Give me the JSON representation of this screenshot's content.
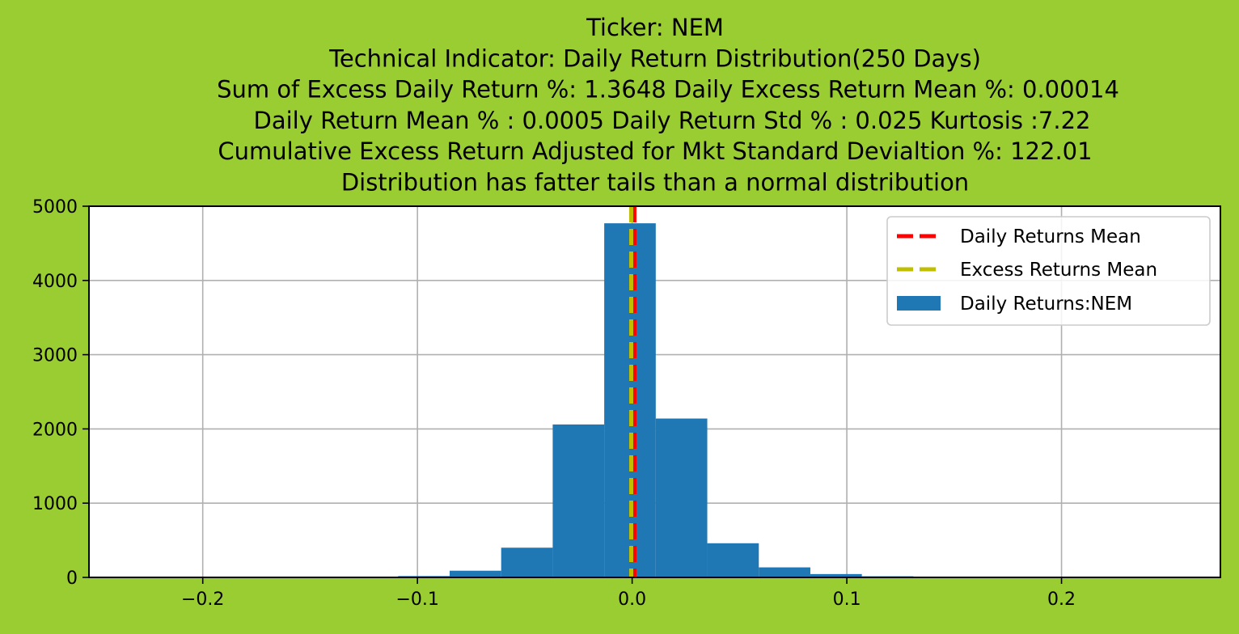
{
  "page": {
    "background": "#9acd32"
  },
  "chart_data": {
    "type": "bar",
    "title_lines": [
      "Ticker: NEM",
      "Technical Indicator: Daily Return Distribution(250 Days)",
      "Sum of Excess Daily Return %: 1.3648   Daily Excess Return Mean %: 0.00014",
      "Daily Return Mean % : 0.0005    Daily Return Std % : 0.025  Kurtosis :7.22",
      "Cumulative Excess Return Adjusted for Mkt Standard Devialtion %: 122.01",
      "Distribution has fatter tails than a normal distribution"
    ],
    "xlabel": "",
    "ylabel": "",
    "xlim": [
      -0.253,
      0.274
    ],
    "ylim": [
      0,
      5000
    ],
    "x_ticks": [
      -0.2,
      -0.1,
      0.0,
      0.1,
      0.2
    ],
    "x_tick_labels": [
      "−0.2",
      "−0.1",
      "0.0",
      "0.1",
      "0.2"
    ],
    "y_ticks": [
      0,
      1000,
      2000,
      3000,
      4000,
      5000
    ],
    "y_tick_labels": [
      "0",
      "1000",
      "2000",
      "3000",
      "4000",
      "5000"
    ],
    "grid": true,
    "legend_position": "top-right",
    "bin_edges": [
      -0.229,
      -0.205,
      -0.181,
      -0.157,
      -0.133,
      -0.109,
      -0.085,
      -0.061,
      -0.037,
      -0.013,
      0.011,
      0.035,
      0.059,
      0.083,
      0.107,
      0.131,
      0.155,
      0.179,
      0.203,
      0.227,
      0.251
    ],
    "counts": [
      1,
      1,
      2,
      3,
      6,
      18,
      90,
      400,
      2060,
      4770,
      2140,
      460,
      135,
      45,
      15,
      4,
      2,
      1,
      1,
      1
    ],
    "series": [
      {
        "name": "Daily Returns:NEM",
        "kind": "histogram",
        "color": "#1f77b4"
      }
    ],
    "lines": [
      {
        "name": "Daily Returns Mean",
        "x": 0.0005,
        "color": "#ff0000",
        "style": "dashed"
      },
      {
        "name": "Excess Returns Mean",
        "x": 0.00014,
        "color": "#bfbf00",
        "style": "dashed"
      }
    ]
  }
}
